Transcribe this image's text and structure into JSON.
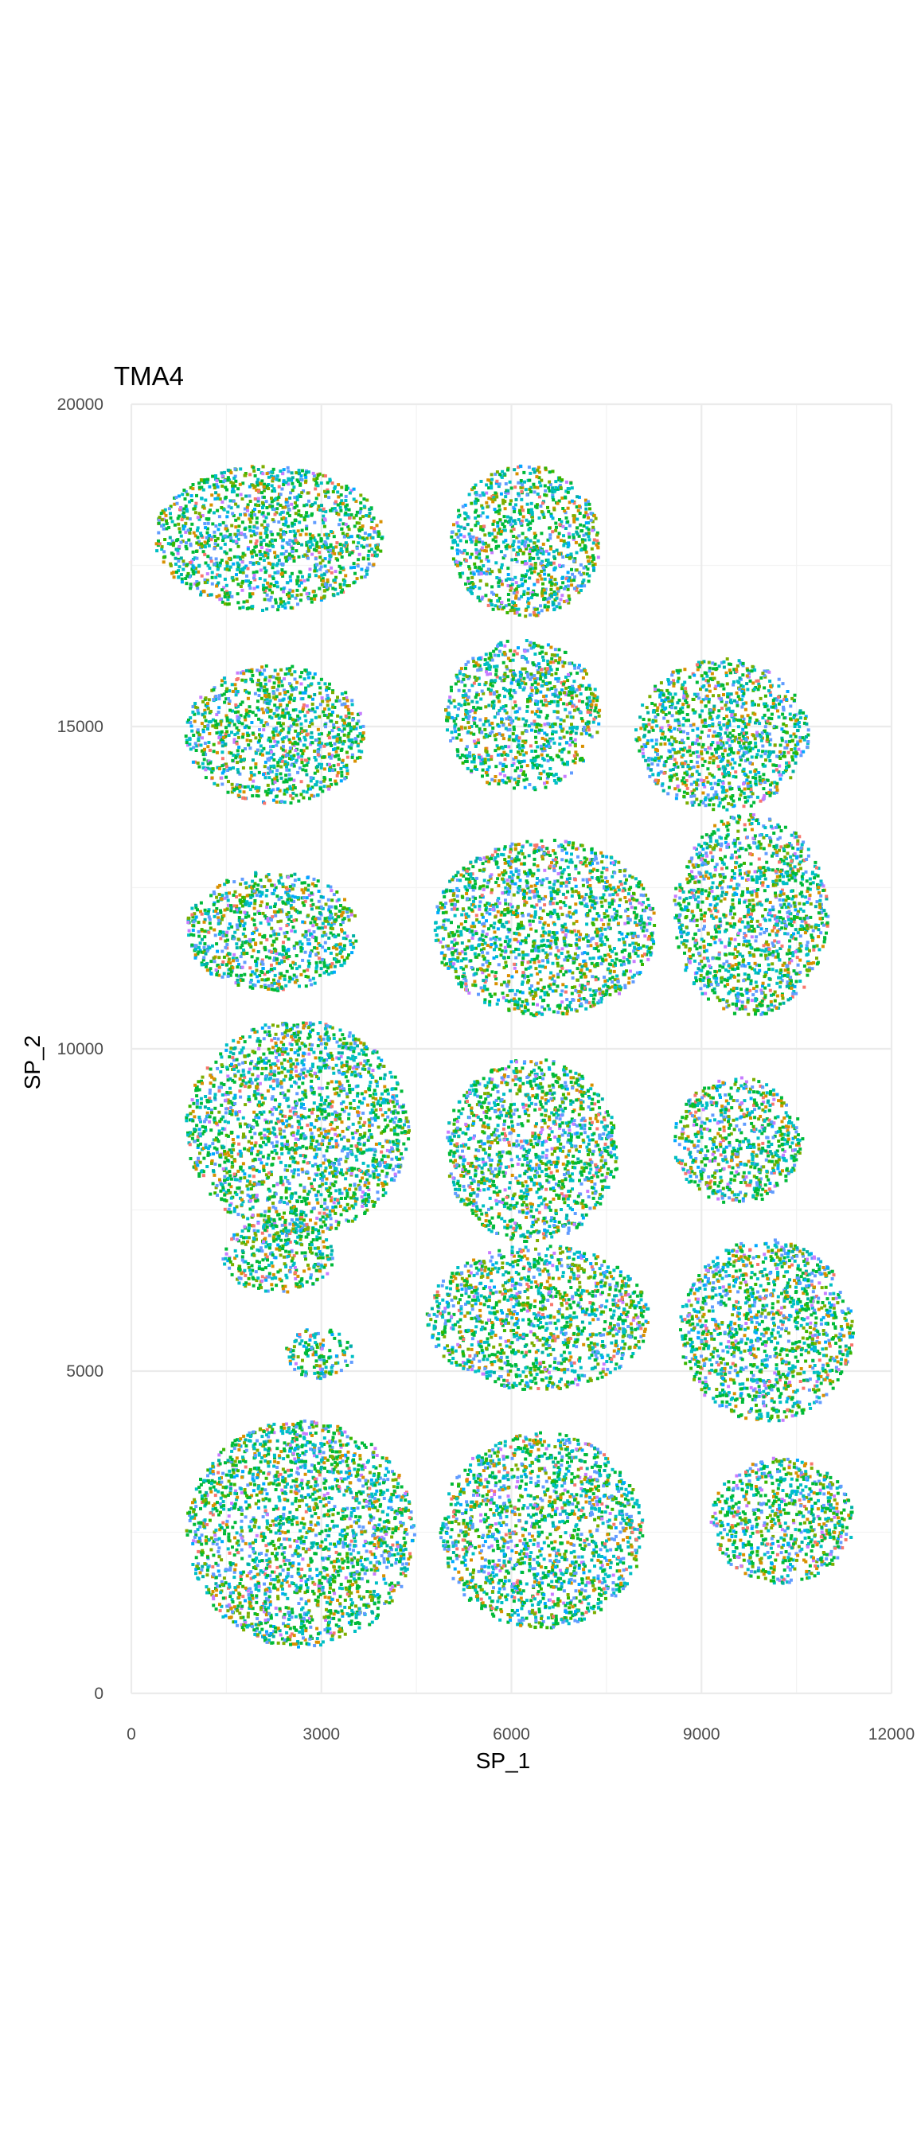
{
  "chart_data": {
    "type": "scatter",
    "title": "TMA4",
    "xlabel": "SP_1",
    "ylabel": "SP_2",
    "xlim": [
      0,
      12000
    ],
    "ylim": [
      0,
      20000
    ],
    "x_ticks": [
      0,
      3000,
      6000,
      9000,
      12000
    ],
    "x_tick_labels": [
      "0",
      "3000",
      "6000",
      "9000",
      "12000"
    ],
    "y_ticks": [
      0,
      5000,
      10000,
      15000,
      20000
    ],
    "y_tick_labels": [
      "0",
      "5000",
      "10000",
      "15000",
      "20000"
    ],
    "grid": true,
    "legend": "none",
    "palette": [
      "#00ba38",
      "#00bfc4",
      "#619cff",
      "#7cae00",
      "#c77cff",
      "#f8766d",
      "#d89000",
      "#00a9ff",
      "#39b600",
      "#00b0a4"
    ],
    "cores": [
      {
        "x": [
          300,
          4000
        ],
        "y": [
          16800,
          19100
        ]
      },
      {
        "x": [
          800,
          3700
        ],
        "y": [
          13800,
          16000
        ]
      },
      {
        "x": [
          5000,
          7400
        ],
        "y": [
          16700,
          19100
        ]
      },
      {
        "x": [
          4900,
          7400
        ],
        "y": [
          14000,
          16400
        ]
      },
      {
        "x": [
          7900,
          10700
        ],
        "y": [
          13700,
          16100
        ]
      },
      {
        "x": [
          800,
          3600
        ],
        "y": [
          10900,
          12800
        ]
      },
      {
        "x": [
          4700,
          8300
        ],
        "y": [
          10500,
          13300
        ]
      },
      {
        "x": [
          8500,
          11000
        ],
        "y": [
          10500,
          13700
        ]
      },
      {
        "x": [
          800,
          4400
        ],
        "y": [
          7100,
          10500
        ]
      },
      {
        "x": [
          4900,
          7700
        ],
        "y": [
          7000,
          9900
        ]
      },
      {
        "x": [
          8500,
          10600
        ],
        "y": [
          7600,
          9600
        ]
      },
      {
        "x": [
          1400,
          3200
        ],
        "y": [
          6200,
          7400
        ]
      },
      {
        "x": [
          4600,
          8200
        ],
        "y": [
          4700,
          7000
        ]
      },
      {
        "x": [
          8600,
          11400
        ],
        "y": [
          4200,
          7100
        ]
      },
      {
        "x": [
          2400,
          3500
        ],
        "y": [
          4900,
          5700
        ]
      },
      {
        "x": [
          800,
          4500
        ],
        "y": [
          700,
          4300
        ]
      },
      {
        "x": [
          4800,
          8100
        ],
        "y": [
          1000,
          4100
        ]
      },
      {
        "x": [
          9100,
          11400
        ],
        "y": [
          1700,
          3700
        ]
      }
    ]
  }
}
